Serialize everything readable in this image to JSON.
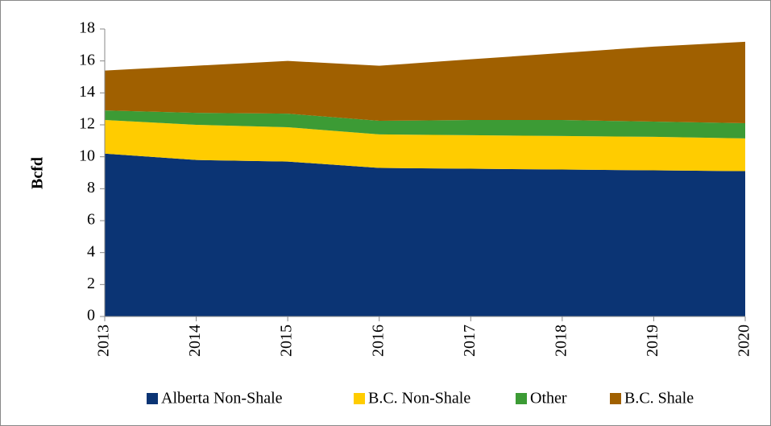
{
  "chart_data": {
    "type": "stacked_area",
    "y_label": "Bcfd",
    "categories": [
      "2013",
      "2014",
      "2015",
      "2016",
      "2017",
      "2018",
      "2019",
      "2020"
    ],
    "series": [
      {
        "name": "Alberta Non-Shale",
        "color": "#0b3474",
        "values": [
          10.2,
          9.8,
          9.7,
          9.3,
          9.25,
          9.2,
          9.15,
          9.1
        ]
      },
      {
        "name": "B.C. Non-Shale",
        "color": "#ffcc00",
        "values": [
          2.1,
          2.2,
          2.15,
          2.1,
          2.1,
          2.1,
          2.1,
          2.05
        ]
      },
      {
        "name": "Other",
        "color": "#3c9b35",
        "values": [
          0.6,
          0.75,
          0.85,
          0.85,
          0.95,
          1.0,
          0.95,
          0.95
        ]
      },
      {
        "name": "B.C. Shale",
        "color": "#a06000",
        "values": [
          2.5,
          2.95,
          3.3,
          3.45,
          3.8,
          4.2,
          4.7,
          5.1
        ]
      }
    ],
    "ylim": [
      0,
      18
    ],
    "yticks": [
      0,
      2,
      4,
      6,
      8,
      10,
      12,
      14,
      16,
      18
    ],
    "legend": "bottom"
  }
}
